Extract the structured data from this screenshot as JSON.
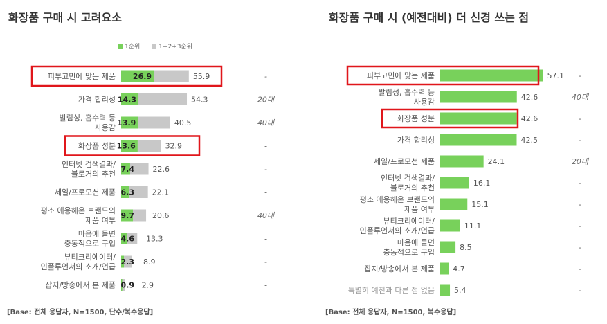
{
  "colors": {
    "green": "#78d15b",
    "gray": "#c8c8c8",
    "highlight": "#e0161b",
    "text": "#555555"
  },
  "left": {
    "title": "화장품 구매 시 고려요소",
    "legend": {
      "first": "1순위",
      "top3": "1+2+3순위"
    },
    "base_note": "[Base: 전체 응답자, N=1500, 단수/복수응답]"
  },
  "right": {
    "title": "화장품 구매 시 (예전대비) 더 신경 쓰는 점",
    "base_note": "[Base: 전체 응답자, N=1500, 복수응답]"
  },
  "chart_data": [
    {
      "type": "bar",
      "orientation": "horizontal",
      "title": "화장품 구매 시 고려요소",
      "categories": [
        [
          "피부고민에 맞는 제품"
        ],
        [
          "가격 합리성"
        ],
        [
          "발림성, 흡수력 등",
          "사용감"
        ],
        [
          "화장품 성분"
        ],
        [
          "인터넷 검색결과/",
          "블로거의 추천"
        ],
        [
          "세일/프로모션 제품"
        ],
        [
          "평소 애용해온 브랜드의",
          "제품 여부"
        ],
        [
          "마음에 들면",
          "충동적으로 구입"
        ],
        [
          "뷰티크리에이터/",
          "인플루언서의 소개/언급"
        ],
        [
          "잡지/방송에서 본 제품"
        ]
      ],
      "series": [
        {
          "name": "1순위",
          "values": [
            26.9,
            14.3,
            13.9,
            13.6,
            7.4,
            6.3,
            9.7,
            4.6,
            2.3,
            0.9
          ]
        },
        {
          "name": "1+2+3순위",
          "values": [
            55.9,
            54.3,
            40.5,
            32.9,
            22.6,
            22.1,
            20.6,
            13.3,
            8.9,
            2.9
          ]
        }
      ],
      "annotations": [
        "-",
        "20대",
        "40대",
        "-",
        "-",
        "-",
        "40대",
        "-",
        "-",
        "-"
      ],
      "highlighted": [
        0,
        3
      ]
    },
    {
      "type": "bar",
      "orientation": "horizontal",
      "title": "화장품 구매 시 (예전대비) 더 신경 쓰는 점",
      "categories": [
        [
          "피부고민에 맞는 제품"
        ],
        [
          "발림성, 흡수력 등",
          "사용감"
        ],
        [
          "화장품 성분"
        ],
        [
          "가격 합리성"
        ],
        [
          "세일/프로모션 제품"
        ],
        [
          "인터넷 검색결과/",
          "블로거의 추천"
        ],
        [
          "평소 애용해온 브랜드의",
          "제품 여부"
        ],
        [
          "뷰티크리에이터/",
          "인플루언서의 소개/언급"
        ],
        [
          "마음에 들면",
          "충동적으로 구입"
        ],
        [
          "잡지/방송에서 본 제품"
        ],
        [
          "특별히 예전과 다른 점 없음"
        ]
      ],
      "values": [
        57.1,
        42.6,
        42.6,
        42.5,
        24.1,
        16.1,
        15.1,
        11.1,
        8.5,
        4.7,
        5.4
      ],
      "annotations": [
        "-",
        "40대",
        "-",
        "-",
        "20대",
        "-",
        "-",
        "-",
        "-",
        "-",
        "-"
      ],
      "highlighted": [
        0,
        2
      ],
      "muted": [
        10
      ]
    }
  ]
}
